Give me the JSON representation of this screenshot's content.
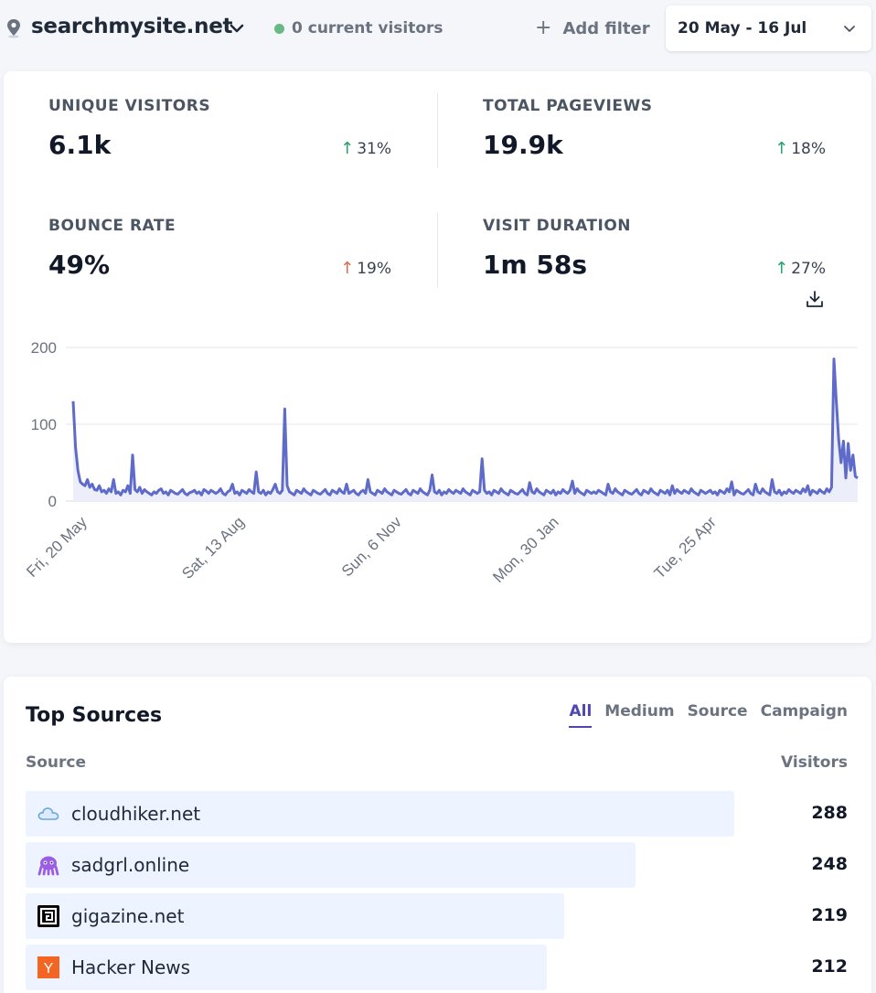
{
  "header": {
    "site_name": "searchmysite.net",
    "current_visitors": "0 current visitors",
    "add_filter": "Add filter",
    "date_range": "20 May - 16 Jul"
  },
  "stats": [
    {
      "title": "UNIQUE VISITORS",
      "value": "6.1k",
      "change": "31%",
      "direction": "up",
      "color": "#22a36a"
    },
    {
      "title": "TOTAL PAGEVIEWS",
      "value": "19.9k",
      "change": "18%",
      "direction": "up",
      "color": "#22a36a"
    },
    {
      "title": "BOUNCE RATE",
      "value": "49%",
      "change": "19%",
      "direction": "up",
      "color": "#e0694f"
    },
    {
      "title": "VISIT DURATION",
      "value": "1m 58s",
      "change": "27%",
      "direction": "up",
      "color": "#22a36a"
    }
  ],
  "chart_data": {
    "type": "area",
    "x_tick_labels": [
      "Fri, 20 May",
      "Sat, 13 Aug",
      "Sun, 6 Nov",
      "Mon, 30 Jan",
      "Tue, 25 Apr"
    ],
    "y_ticks": [
      0,
      100,
      200
    ],
    "ylim": [
      0,
      200
    ],
    "grid": true,
    "line_color": "#5f6bc8",
    "fill_color": "#eceefa",
    "values": [
      130,
      70,
      40,
      25,
      22,
      20,
      28,
      18,
      22,
      15,
      14,
      20,
      12,
      14,
      10,
      16,
      12,
      28,
      10,
      12,
      8,
      14,
      12,
      20,
      10,
      60,
      15,
      12,
      18,
      10,
      15,
      12,
      10,
      8,
      12,
      10,
      14,
      16,
      10,
      12,
      8,
      14,
      12,
      10,
      9,
      12,
      15,
      10,
      8,
      11,
      12,
      14,
      10,
      12,
      8,
      15,
      13,
      10,
      14,
      12,
      10,
      12,
      16,
      10,
      8,
      12,
      14,
      22,
      10,
      12,
      8,
      14,
      12,
      10,
      15,
      12,
      10,
      38,
      12,
      10,
      14,
      8,
      12,
      10,
      15,
      22,
      12,
      10,
      14,
      120,
      20,
      12,
      10,
      8,
      14,
      12,
      10,
      16,
      12,
      10,
      8,
      14,
      12,
      10,
      9,
      12,
      15,
      10,
      8,
      14,
      12,
      10,
      16,
      12,
      10,
      22,
      10,
      12,
      14,
      10,
      8,
      12,
      14,
      10,
      28,
      12,
      10,
      8,
      14,
      12,
      10,
      16,
      12,
      10,
      8,
      14,
      12,
      10,
      9,
      12,
      15,
      10,
      8,
      14,
      12,
      10,
      16,
      12,
      10,
      8,
      14,
      34,
      12,
      10,
      14,
      8,
      12,
      10,
      15,
      12,
      10,
      14,
      12,
      10,
      16,
      12,
      10,
      8,
      14,
      12,
      10,
      12,
      55,
      14,
      10,
      12,
      8,
      14,
      12,
      10,
      16,
      12,
      10,
      8,
      14,
      12,
      10,
      9,
      12,
      15,
      10,
      8,
      24,
      12,
      10,
      16,
      12,
      10,
      8,
      14,
      12,
      10,
      14,
      8,
      12,
      10,
      15,
      12,
      10,
      14,
      26,
      10,
      16,
      12,
      10,
      8,
      14,
      12,
      10,
      12,
      10,
      14,
      12,
      10,
      8,
      22,
      12,
      10,
      16,
      12,
      10,
      8,
      14,
      12,
      10,
      9,
      12,
      15,
      10,
      8,
      14,
      12,
      10,
      16,
      12,
      10,
      8,
      14,
      12,
      10,
      14,
      8,
      20,
      10,
      15,
      12,
      10,
      14,
      12,
      10,
      16,
      12,
      10,
      8,
      14,
      12,
      10,
      12,
      14,
      10,
      12,
      8,
      14,
      12,
      10,
      16,
      12,
      25,
      8,
      14,
      12,
      10,
      9,
      12,
      15,
      10,
      8,
      22,
      12,
      10,
      16,
      12,
      10,
      8,
      28,
      12,
      10,
      14,
      8,
      12,
      10,
      15,
      12,
      10,
      14,
      12,
      10,
      16,
      12,
      20,
      8,
      14,
      12,
      10,
      15,
      12,
      10,
      16,
      12,
      18,
      185,
      130,
      80,
      50,
      78,
      30,
      75,
      40,
      60,
      32,
      30
    ]
  },
  "top_sources": {
    "title": "Top Sources",
    "tabs": [
      "All",
      "Medium",
      "Source",
      "Campaign"
    ],
    "active_tab": "All",
    "col_source": "Source",
    "col_visitors": "Visitors",
    "max": 288,
    "rows": [
      {
        "name": "cloudhiker.net",
        "visitors": 288,
        "visitors_label": "288",
        "icon": "cloud-icon"
      },
      {
        "name": "sadgrl.online",
        "visitors": 248,
        "visitors_label": "248",
        "icon": "octopus-icon"
      },
      {
        "name": "gigazine.net",
        "visitors": 219,
        "visitors_label": "219",
        "icon": "gigazine-logo-icon"
      },
      {
        "name": "Hacker News",
        "visitors": 212,
        "visitors_label": "212",
        "icon": "hacker-news-icon"
      }
    ]
  }
}
